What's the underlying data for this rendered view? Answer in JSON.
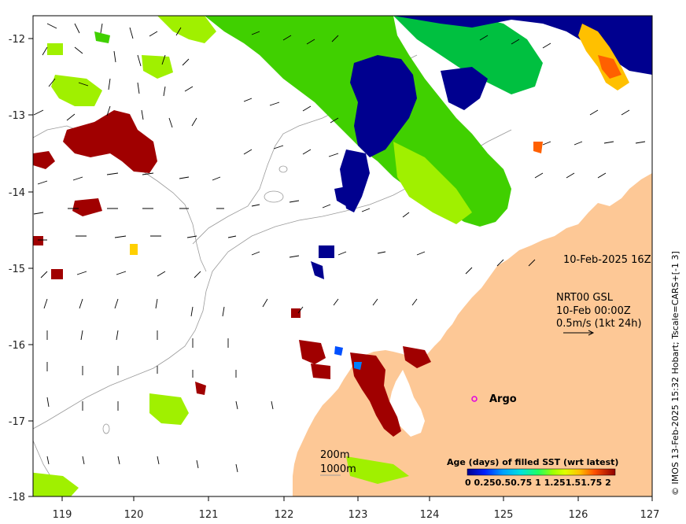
{
  "axes": {
    "x_ticks": [
      "119",
      "120",
      "121",
      "122",
      "123",
      "124",
      "125",
      "126",
      "127"
    ],
    "y_ticks": [
      "-12",
      "-13",
      "-14",
      "-15",
      "-16",
      "-17",
      "-18"
    ]
  },
  "annotations": {
    "timestamp": "10-Feb-2025 16Z",
    "product": "NRT00 GSL",
    "vector_time": "10-Feb 00:00Z",
    "vector_scale": "0.5m/s (1kt 24h)",
    "argo_label": "Argo",
    "contour_200": "200m",
    "contour_1000": "1000m"
  },
  "colorbar": {
    "title": "Age (days) of filled SST (wrt latest)",
    "tick_text": "0  0.250.50.75  1  1.251.51.75  2",
    "colors": [
      "#00008f",
      "#0020ff",
      "#0080ff",
      "#00d0ff",
      "#20ff80",
      "#80ff00",
      "#d0ff00",
      "#ffc000",
      "#ff6000",
      "#e00000",
      "#8f0000"
    ]
  },
  "credit": "© IMOS 13-Feb-2025 15:32 Hobart; Tscale=CARS+[-1 3]",
  "colors": {
    "land": "#fdc896",
    "age_old": "#a00000",
    "age_new": "#00008f"
  }
}
